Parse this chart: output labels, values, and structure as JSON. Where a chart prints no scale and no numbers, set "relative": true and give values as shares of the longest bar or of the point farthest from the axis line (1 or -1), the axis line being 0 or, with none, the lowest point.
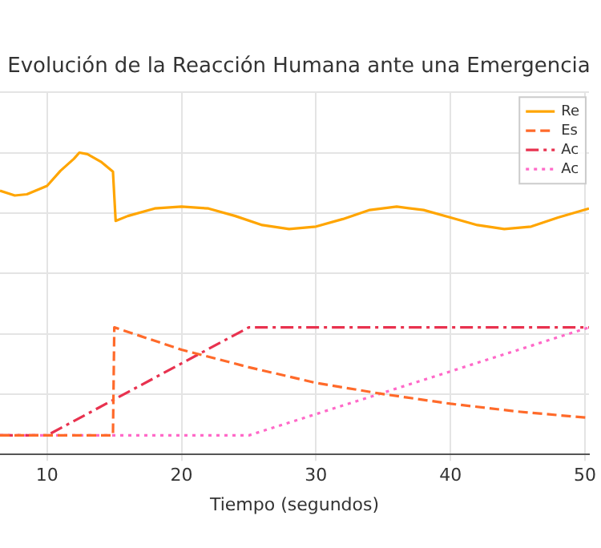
{
  "chart_data": {
    "type": "line",
    "title": "Evolución de la Reacción Humana ante una Emergencia",
    "xlabel": "Tiempo (segundos)",
    "relative": true,
    "xlim": [
      6.5,
      50.3
    ],
    "xticks": [
      10,
      20,
      30,
      40,
      50
    ],
    "grid": true,
    "legend": "top right",
    "marker": "none",
    "series": [
      {
        "name": "Re",
        "color": "#ffa500",
        "line_style": "solid",
        "x": [
          6.5,
          7.6,
          8.5,
          10,
          11,
          12,
          12.4,
          13,
          14,
          14.9,
          15.1,
          16,
          18,
          20,
          22,
          24,
          26,
          28,
          30,
          32,
          34,
          36,
          38,
          40,
          42,
          44,
          46,
          48,
          50.3
        ],
        "values": [
          0.874,
          0.858,
          0.862,
          0.89,
          0.94,
          0.98,
          1.0,
          0.995,
          0.97,
          0.937,
          0.774,
          0.79,
          0.815,
          0.821,
          0.815,
          0.79,
          0.76,
          0.747,
          0.755,
          0.78,
          0.81,
          0.821,
          0.81,
          0.785,
          0.76,
          0.747,
          0.755,
          0.785,
          0.815
        ]
      },
      {
        "name": "Es",
        "color": "#ff6a2a",
        "line_style": "dashed",
        "x": [
          6.5,
          14.9,
          15,
          20,
          25,
          30,
          35,
          40,
          45,
          50.3
        ],
        "values": [
          0.063,
          0.063,
          0.421,
          0.347,
          0.289,
          0.237,
          0.2,
          0.168,
          0.142,
          0.121
        ]
      },
      {
        "name": "Ac",
        "color": "#e8324f",
        "line_style": "dashdot",
        "x": [
          6.5,
          10,
          25,
          50.3
        ],
        "values": [
          0.063,
          0.063,
          0.421,
          0.421
        ]
      },
      {
        "name": "Ac",
        "color": "#ff69c8",
        "line_style": "dotted",
        "x": [
          6.5,
          25,
          50.3
        ],
        "values": [
          0.063,
          0.063,
          0.421
        ]
      }
    ]
  }
}
